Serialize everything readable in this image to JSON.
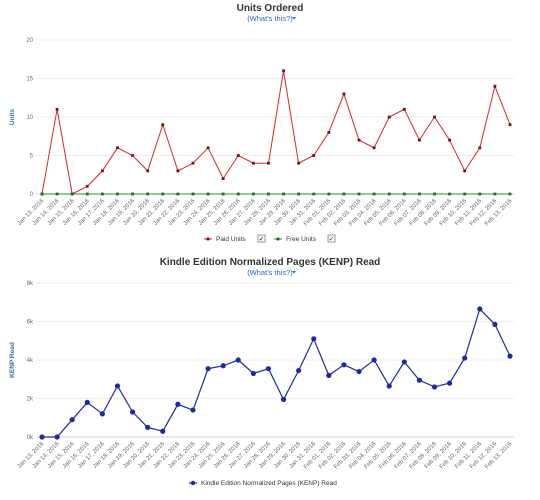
{
  "link_text": "(What's this?)",
  "legend_check": "✓",
  "chart_data": [
    {
      "type": "line",
      "title": "Units Ordered",
      "ylabel": "Units",
      "ylim": [
        0,
        20
      ],
      "yticks": [
        "0",
        "5",
        "10",
        "15",
        "20"
      ],
      "grid": true,
      "legend_position": "bottom-center",
      "categories": [
        "Jan 13, 2016",
        "Jan 14, 2016",
        "Jan 15, 2016",
        "Jan 16, 2016",
        "Jan 17, 2016",
        "Jan 18, 2016",
        "Jan 19, 2016",
        "Jan 20, 2016",
        "Jan 21, 2016",
        "Jan 22, 2016",
        "Jan 23, 2016",
        "Jan 24, 2016",
        "Jan 25, 2016",
        "Jan 26, 2016",
        "Jan 27, 2016",
        "Jan 28, 2016",
        "Jan 29, 2016",
        "Jan 30, 2016",
        "Jan 31, 2016",
        "Feb 01, 2016",
        "Feb 02, 2016",
        "Feb 03, 2016",
        "Feb 04, 2016",
        "Feb 05, 2016",
        "Feb 06, 2016",
        "Feb 07, 2016",
        "Feb 08, 2016",
        "Feb 09, 2016",
        "Feb 10, 2016",
        "Feb 11, 2016",
        "Feb 12, 2016",
        "Feb 13, 2016"
      ],
      "series": [
        {
          "name": "Paid Units",
          "color": "#d9262c",
          "values": [
            0,
            11,
            0,
            1,
            3,
            6,
            5,
            3,
            9,
            3,
            4,
            6,
            2,
            5,
            4,
            4,
            16,
            4,
            5,
            8,
            13,
            7,
            6,
            10,
            11,
            7,
            10,
            7,
            3,
            6,
            14,
            9
          ]
        },
        {
          "name": "Free Units",
          "color": "#2e8b2e",
          "values": [
            0,
            0,
            0,
            0,
            0,
            0,
            0,
            0,
            0,
            0,
            0,
            0,
            0,
            0,
            0,
            0,
            0,
            0,
            0,
            0,
            0,
            0,
            0,
            0,
            0,
            0,
            0,
            0,
            0,
            0,
            0,
            0
          ]
        }
      ]
    },
    {
      "type": "line",
      "title": "Kindle Edition Normalized Pages (KENP) Read",
      "ylabel": "KENP Read",
      "ylim": [
        0,
        8000
      ],
      "yticks": [
        "0k",
        "2k",
        "4k",
        "6k",
        "8k"
      ],
      "grid": true,
      "legend_position": "bottom-center",
      "categories": [
        "Jan 13, 2016",
        "Jan 14, 2016",
        "Jan 15, 2016",
        "Jan 16, 2016",
        "Jan 17, 2016",
        "Jan 18, 2016",
        "Jan 19, 2016",
        "Jan 20, 2016",
        "Jan 21, 2016",
        "Jan 22, 2016",
        "Jan 23, 2016",
        "Jan 24, 2016",
        "Jan 25, 2016",
        "Jan 26, 2016",
        "Jan 27, 2016",
        "Jan 28, 2016",
        "Jan 29, 2016",
        "Jan 30, 2016",
        "Jan 31, 2016",
        "Feb 01, 2016",
        "Feb 02, 2016",
        "Feb 03, 2016",
        "Feb 04, 2016",
        "Feb 05, 2016",
        "Feb 06, 2016",
        "Feb 07, 2016",
        "Feb 08, 2016",
        "Feb 09, 2016",
        "Feb 10, 2016",
        "Feb 11, 2016",
        "Feb 12, 2016",
        "Feb 13, 2016"
      ],
      "series": [
        {
          "name": "Kindle Edition Normalized Pages (KENP) Read",
          "color": "#1f2a9e",
          "values": [
            0,
            0,
            900,
            1800,
            1200,
            2650,
            1300,
            500,
            300,
            1700,
            1400,
            3550,
            3700,
            4000,
            3300,
            3550,
            1950,
            3450,
            5100,
            3200,
            3750,
            3400,
            4000,
            2650,
            3900,
            2950,
            2600,
            2800,
            4100,
            6650,
            5850,
            4200
          ]
        }
      ]
    }
  ]
}
